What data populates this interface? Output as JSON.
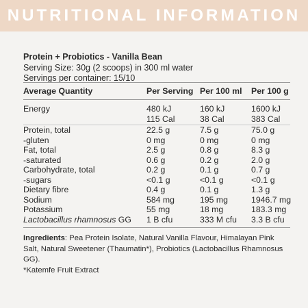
{
  "banner": {
    "title": "NUTRITIONAL INFORMATION"
  },
  "product": {
    "name": "Protein + Probiotics - Vanilla Bean",
    "serving_size": "Serving Size: 30g (2 scoops) in 300 ml water",
    "servings": "Servings per container: 15/10"
  },
  "table": {
    "headers": [
      "Average Quantity",
      "Per Serving",
      "Per 100 ml",
      "Per 100 g"
    ],
    "rows": [
      {
        "label": "Energy",
        "serving": "480 kJ",
        "ml": "160 kJ",
        "g": "1600 kJ"
      },
      {
        "label": "",
        "serving": "115 Cal",
        "ml": "38 Cal",
        "g": "383 Cal"
      },
      {
        "label": "Protein, total",
        "serving": "22.5 g",
        "ml": "7.5 g",
        "g": "75.0 g"
      },
      {
        "label": "-gluten",
        "serving": "0 mg",
        "ml": "0 mg",
        "g": "0 mg"
      },
      {
        "label": "Fat, total",
        "serving": "2.5 g",
        "ml": "0.8 g",
        "g": "8.3 g"
      },
      {
        "label": "-saturated",
        "serving": "0.6 g",
        "ml": "0.2 g",
        "g": "2.0 g"
      },
      {
        "label": "Carbohydrate, total",
        "serving": "0.2 g",
        "ml": "0.1 g",
        "g": "0.7 g"
      },
      {
        "label": "-sugars",
        "serving": "<0.1 g",
        "ml": "<0.1 g",
        "g": "<0.1 g"
      },
      {
        "label": "Dietary fibre",
        "serving": "0.4 g",
        "ml": "0.1 g",
        "g": "1.3 g"
      },
      {
        "label": "Sodium",
        "serving": "584 mg",
        "ml": "195 mg",
        "g": "1946.7 mg"
      },
      {
        "label": "Potassium",
        "serving": "55 mg",
        "ml": "18 mg",
        "g": "183.3 mg"
      },
      {
        "label_italic": "Lactobacillus rhamnosus",
        "label_suffix": " GG",
        "serving": "1 B cfu",
        "ml": "333 M cfu",
        "g": "3.3 B cfu"
      }
    ]
  },
  "ingredients": {
    "label": "Ingredients",
    "text": ": Pea Protein Isolate, Natural Vanilla Flavour, Himalayan Pink Salt, Natural Sweetener (Thaumatin*), Probiotics (Lactobacillus Rhamnosus GG).",
    "footnote": "*Katemfe Fruit Extract"
  }
}
